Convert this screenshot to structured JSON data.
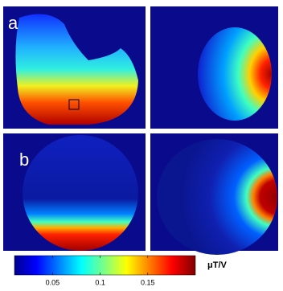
{
  "panels": [
    {
      "label": "a"
    },
    {
      "label": "b"
    }
  ],
  "colorbar": {
    "label": "μT/V",
    "lim": [
      0.01,
      0.2
    ],
    "ticks": [
      0.05,
      0.1,
      0.15
    ]
  }
}
